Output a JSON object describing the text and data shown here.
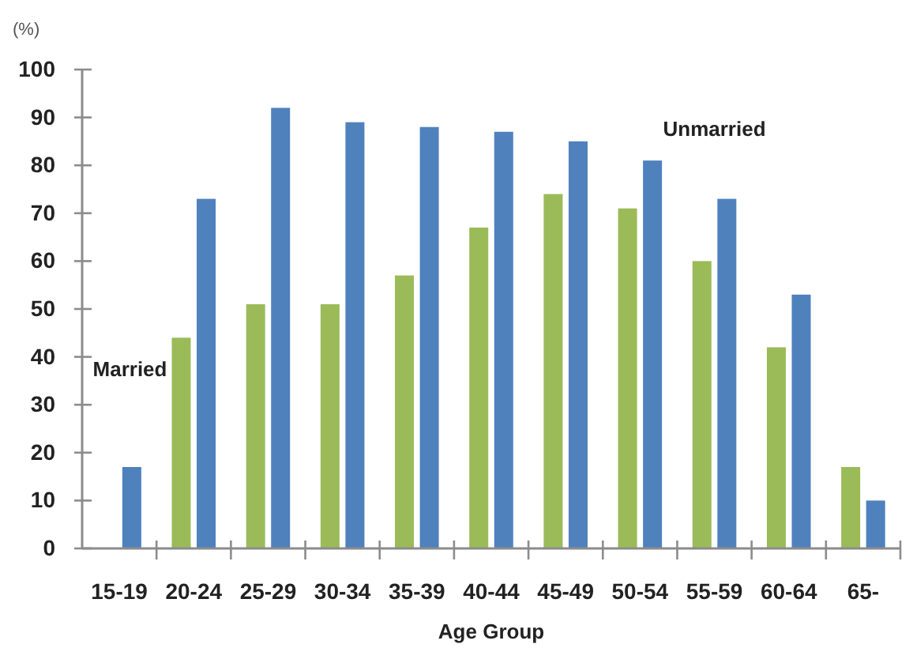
{
  "chart_data": {
    "type": "bar",
    "ylabel": "(%)",
    "xlabel": "Age Group",
    "categories": [
      "15-19",
      "20-24",
      "25-29",
      "30-34",
      "35-39",
      "40-44",
      "45-49",
      "50-54",
      "55-59",
      "60-64",
      "65-"
    ],
    "series": [
      {
        "name": "Married",
        "color": "#9bbb59",
        "values": [
          null,
          44,
          51,
          51,
          57,
          67,
          74,
          71,
          60,
          42,
          17
        ]
      },
      {
        "name": "Unmarried",
        "color": "#4f81bd",
        "values": [
          17,
          73,
          92,
          89,
          88,
          87,
          85,
          81,
          73,
          53,
          10
        ]
      }
    ],
    "ylim": [
      0,
      100
    ],
    "yticks": [
      0,
      10,
      20,
      30,
      40,
      50,
      60,
      70,
      80,
      90,
      100
    ]
  }
}
